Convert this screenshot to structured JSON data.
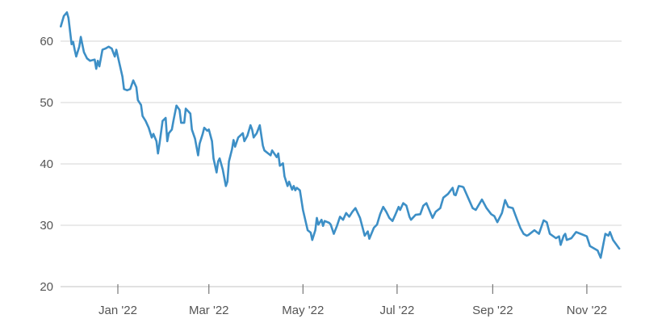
{
  "chart_data": {
    "type": "line",
    "title": "",
    "xlabel": "",
    "ylabel": "",
    "ylim": [
      20,
      65
    ],
    "grid": "horizontal",
    "line_color": "#3d8fc6",
    "y_ticks": [
      {
        "value": 20,
        "label": "20"
      },
      {
        "value": 30,
        "label": "30"
      },
      {
        "value": 40,
        "label": "40"
      },
      {
        "value": 50,
        "label": "50"
      },
      {
        "value": 60,
        "label": "60"
      }
    ],
    "x_ticks": [
      {
        "date": "2022-01-01",
        "label": "Jan '22"
      },
      {
        "date": "2022-03-01",
        "label": "Mar '22"
      },
      {
        "date": "2022-05-01",
        "label": "May '22"
      },
      {
        "date": "2022-07-01",
        "label": "Jul '22"
      },
      {
        "date": "2022-09-01",
        "label": "Sep '22"
      },
      {
        "date": "2022-11-01",
        "label": "Nov '22"
      }
    ],
    "points": [
      [
        "2021-11-25",
        62.4
      ],
      [
        "2021-11-27",
        64.1
      ],
      [
        "2021-11-29",
        64.7
      ],
      [
        "2021-11-30",
        63.8
      ],
      [
        "2021-12-02",
        59.5
      ],
      [
        "2021-12-03",
        59.9
      ],
      [
        "2021-12-04",
        58.6
      ],
      [
        "2021-12-05",
        57.5
      ],
      [
        "2021-12-07",
        59.1
      ],
      [
        "2021-12-08",
        60.7
      ],
      [
        "2021-12-10",
        58.2
      ],
      [
        "2021-12-12",
        57.2
      ],
      [
        "2021-12-14",
        56.8
      ],
      [
        "2021-12-17",
        57.0
      ],
      [
        "2021-12-18",
        55.5
      ],
      [
        "2021-12-19",
        56.8
      ],
      [
        "2021-12-20",
        55.9
      ],
      [
        "2021-12-22",
        58.6
      ],
      [
        "2021-12-24",
        58.8
      ],
      [
        "2021-12-26",
        59.1
      ],
      [
        "2021-12-28",
        58.8
      ],
      [
        "2021-12-30",
        57.5
      ],
      [
        "2021-12-31",
        58.6
      ],
      [
        "2022-01-02",
        56.4
      ],
      [
        "2022-01-04",
        54.2
      ],
      [
        "2022-01-05",
        52.2
      ],
      [
        "2022-01-07",
        52.0
      ],
      [
        "2022-01-09",
        52.2
      ],
      [
        "2022-01-11",
        53.6
      ],
      [
        "2022-01-13",
        52.5
      ],
      [
        "2022-01-14",
        50.4
      ],
      [
        "2022-01-16",
        49.6
      ],
      [
        "2022-01-17",
        47.8
      ],
      [
        "2022-01-19",
        47.0
      ],
      [
        "2022-01-21",
        45.9
      ],
      [
        "2022-01-23",
        44.3
      ],
      [
        "2022-01-24",
        44.9
      ],
      [
        "2022-01-26",
        43.7
      ],
      [
        "2022-01-27",
        41.7
      ],
      [
        "2022-01-28",
        43.3
      ],
      [
        "2022-01-30",
        47.0
      ],
      [
        "2022-02-01",
        47.5
      ],
      [
        "2022-02-02",
        43.7
      ],
      [
        "2022-02-03",
        45.0
      ],
      [
        "2022-02-05",
        45.6
      ],
      [
        "2022-02-06",
        47.0
      ],
      [
        "2022-02-08",
        49.5
      ],
      [
        "2022-02-10",
        48.8
      ],
      [
        "2022-02-11",
        46.7
      ],
      [
        "2022-02-13",
        46.7
      ],
      [
        "2022-02-14",
        49.0
      ],
      [
        "2022-02-17",
        48.2
      ],
      [
        "2022-02-18",
        45.6
      ],
      [
        "2022-02-20",
        44.1
      ],
      [
        "2022-02-22",
        41.4
      ],
      [
        "2022-02-23",
        43.3
      ],
      [
        "2022-02-25",
        44.9
      ],
      [
        "2022-02-26",
        45.9
      ],
      [
        "2022-02-28",
        45.4
      ],
      [
        "2022-03-01",
        45.6
      ],
      [
        "2022-03-03",
        43.7
      ],
      [
        "2022-03-04",
        40.9
      ],
      [
        "2022-03-06",
        38.6
      ],
      [
        "2022-03-07",
        40.4
      ],
      [
        "2022-03-08",
        40.9
      ],
      [
        "2022-03-10",
        39.1
      ],
      [
        "2022-03-12",
        36.4
      ],
      [
        "2022-03-13",
        37.1
      ],
      [
        "2022-03-14",
        40.4
      ],
      [
        "2022-03-16",
        42.4
      ],
      [
        "2022-03-17",
        43.9
      ],
      [
        "2022-03-18",
        42.8
      ],
      [
        "2022-03-20",
        44.3
      ],
      [
        "2022-03-23",
        45.0
      ],
      [
        "2022-03-24",
        43.7
      ],
      [
        "2022-03-26",
        44.6
      ],
      [
        "2022-03-28",
        46.3
      ],
      [
        "2022-03-29",
        45.6
      ],
      [
        "2022-03-30",
        44.3
      ],
      [
        "2022-04-01",
        45.0
      ],
      [
        "2022-04-03",
        46.3
      ],
      [
        "2022-04-05",
        43.0
      ],
      [
        "2022-04-06",
        42.2
      ],
      [
        "2022-04-10",
        41.4
      ],
      [
        "2022-04-11",
        42.2
      ],
      [
        "2022-04-14",
        41.1
      ],
      [
        "2022-04-15",
        41.7
      ],
      [
        "2022-04-16",
        39.7
      ],
      [
        "2022-04-18",
        40.1
      ],
      [
        "2022-04-19",
        38.0
      ],
      [
        "2022-04-21",
        36.4
      ],
      [
        "2022-04-22",
        37.1
      ],
      [
        "2022-04-24",
        35.8
      ],
      [
        "2022-04-25",
        36.4
      ],
      [
        "2022-04-26",
        35.7
      ],
      [
        "2022-04-27",
        36.1
      ],
      [
        "2022-04-29",
        35.7
      ],
      [
        "2022-05-01",
        32.5
      ],
      [
        "2022-05-04",
        29.2
      ],
      [
        "2022-05-06",
        28.8
      ],
      [
        "2022-05-07",
        27.6
      ],
      [
        "2022-05-09",
        29.2
      ],
      [
        "2022-05-10",
        31.2
      ],
      [
        "2022-05-11",
        30.1
      ],
      [
        "2022-05-13",
        30.9
      ],
      [
        "2022-05-14",
        29.9
      ],
      [
        "2022-05-15",
        30.7
      ],
      [
        "2022-05-18",
        30.4
      ],
      [
        "2022-05-19",
        30.1
      ],
      [
        "2022-05-21",
        28.6
      ],
      [
        "2022-05-23",
        29.9
      ],
      [
        "2022-05-25",
        31.4
      ],
      [
        "2022-05-27",
        30.9
      ],
      [
        "2022-05-29",
        32.0
      ],
      [
        "2022-05-31",
        31.4
      ],
      [
        "2022-06-02",
        32.2
      ],
      [
        "2022-06-04",
        32.8
      ],
      [
        "2022-06-07",
        31.2
      ],
      [
        "2022-06-10",
        28.3
      ],
      [
        "2022-06-12",
        29.0
      ],
      [
        "2022-06-13",
        27.8
      ],
      [
        "2022-06-16",
        29.6
      ],
      [
        "2022-06-18",
        30.1
      ],
      [
        "2022-06-20",
        31.8
      ],
      [
        "2022-06-22",
        33.0
      ],
      [
        "2022-06-24",
        32.2
      ],
      [
        "2022-06-26",
        31.2
      ],
      [
        "2022-06-28",
        30.7
      ],
      [
        "2022-06-30",
        31.8
      ],
      [
        "2022-07-02",
        33.0
      ],
      [
        "2022-07-03",
        32.5
      ],
      [
        "2022-07-05",
        33.6
      ],
      [
        "2022-07-07",
        33.2
      ],
      [
        "2022-07-09",
        31.4
      ],
      [
        "2022-07-10",
        30.9
      ],
      [
        "2022-07-13",
        31.7
      ],
      [
        "2022-07-16",
        31.8
      ],
      [
        "2022-07-18",
        33.2
      ],
      [
        "2022-07-20",
        33.6
      ],
      [
        "2022-07-23",
        31.8
      ],
      [
        "2022-07-24",
        31.2
      ],
      [
        "2022-07-26",
        32.2
      ],
      [
        "2022-07-29",
        32.8
      ],
      [
        "2022-07-31",
        34.5
      ],
      [
        "2022-08-03",
        35.1
      ],
      [
        "2022-08-06",
        36.1
      ],
      [
        "2022-08-07",
        35.0
      ],
      [
        "2022-08-08",
        34.9
      ],
      [
        "2022-08-10",
        36.4
      ],
      [
        "2022-08-12",
        36.3
      ],
      [
        "2022-08-13",
        36.2
      ],
      [
        "2022-08-16",
        34.5
      ],
      [
        "2022-08-19",
        32.8
      ],
      [
        "2022-08-21",
        32.5
      ],
      [
        "2022-08-25",
        34.2
      ],
      [
        "2022-08-28",
        32.8
      ],
      [
        "2022-08-31",
        31.8
      ],
      [
        "2022-09-02",
        31.5
      ],
      [
        "2022-09-04",
        30.5
      ],
      [
        "2022-09-07",
        32.0
      ],
      [
        "2022-09-09",
        34.1
      ],
      [
        "2022-09-11",
        33.0
      ],
      [
        "2022-09-14",
        32.8
      ],
      [
        "2022-09-17",
        30.8
      ],
      [
        "2022-09-19",
        29.5
      ],
      [
        "2022-09-21",
        28.6
      ],
      [
        "2022-09-23",
        28.3
      ],
      [
        "2022-09-24",
        28.4
      ],
      [
        "2022-09-28",
        29.2
      ],
      [
        "2022-10-01",
        28.6
      ],
      [
        "2022-10-04",
        30.8
      ],
      [
        "2022-10-06",
        30.5
      ],
      [
        "2022-10-08",
        28.6
      ],
      [
        "2022-10-12",
        27.9
      ],
      [
        "2022-10-14",
        28.2
      ],
      [
        "2022-10-15",
        26.8
      ],
      [
        "2022-10-17",
        28.3
      ],
      [
        "2022-10-18",
        28.6
      ],
      [
        "2022-10-19",
        27.6
      ],
      [
        "2022-10-22",
        27.9
      ],
      [
        "2022-10-25",
        28.9
      ],
      [
        "2022-10-28",
        28.6
      ],
      [
        "2022-11-01",
        28.2
      ],
      [
        "2022-11-03",
        26.6
      ],
      [
        "2022-11-08",
        25.9
      ],
      [
        "2022-11-10",
        24.7
      ],
      [
        "2022-11-13",
        28.6
      ],
      [
        "2022-11-15",
        28.3
      ],
      [
        "2022-11-16",
        28.9
      ],
      [
        "2022-11-18",
        27.6
      ],
      [
        "2022-11-22",
        26.2
      ]
    ]
  }
}
